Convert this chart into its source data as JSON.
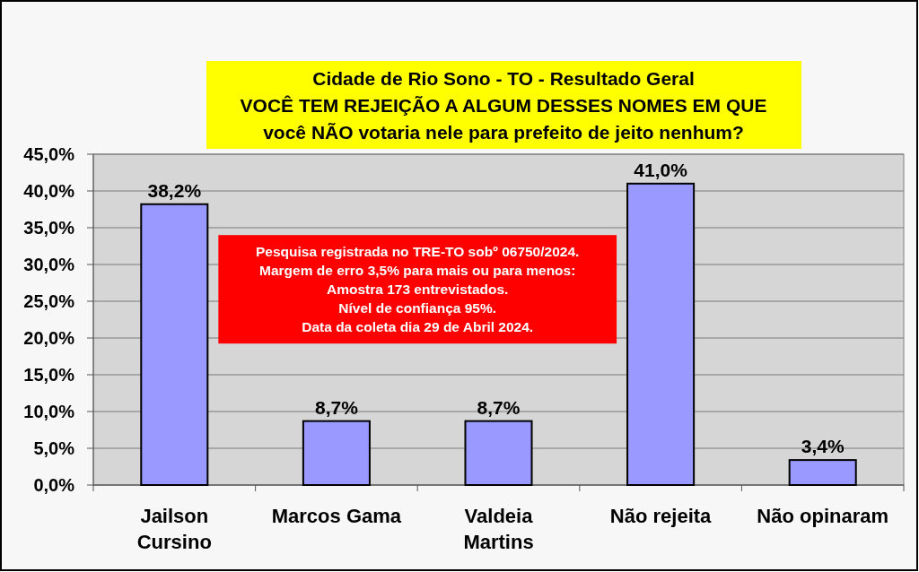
{
  "chart_data": {
    "type": "bar",
    "title": "Cidade de Rio Sono - TO - Resultado Geral\nVOCÊ TEM REJEIÇÃO A ALGUM DESSES NOMES EM QUE\nvocê NÃO votaria nele para prefeito de jeito nenhum?",
    "categories": [
      "Jailson Cursino",
      "Marcos Gama",
      "Valdeia Martins",
      "Não rejeita",
      "Não opinaram"
    ],
    "values": [
      38.2,
      8.7,
      8.7,
      41.0,
      3.4
    ],
    "color": "#9999ff",
    "value_labels": [
      "38,2%",
      "8,7%",
      "8,7%",
      "41,0%",
      "3,4%"
    ],
    "ylim": [
      0,
      45
    ],
    "yticks": [
      {
        "value": 0,
        "label": "0,0%"
      },
      {
        "value": 5,
        "label": "5,0%"
      },
      {
        "value": 10,
        "label": "10,0%"
      },
      {
        "value": 15,
        "label": "15,0%"
      },
      {
        "value": 20,
        "label": "20,0%"
      },
      {
        "value": 25,
        "label": "25,0%"
      },
      {
        "value": 30,
        "label": "30,0%"
      },
      {
        "value": 35,
        "label": "35,0%"
      },
      {
        "value": 40,
        "label": "40,0%"
      },
      {
        "value": 45,
        "label": "45,0%"
      }
    ],
    "grid": "y",
    "annotations": [
      "Pesquisa registrada no TRE-TO sobº 06750/2024.\nMargem de erro 3,5% para mais ou para menos:\nAmostra 173 entrevistados.\nNível de confiança 95%.\nData da coleta dia 29 de Abril 2024."
    ]
  }
}
